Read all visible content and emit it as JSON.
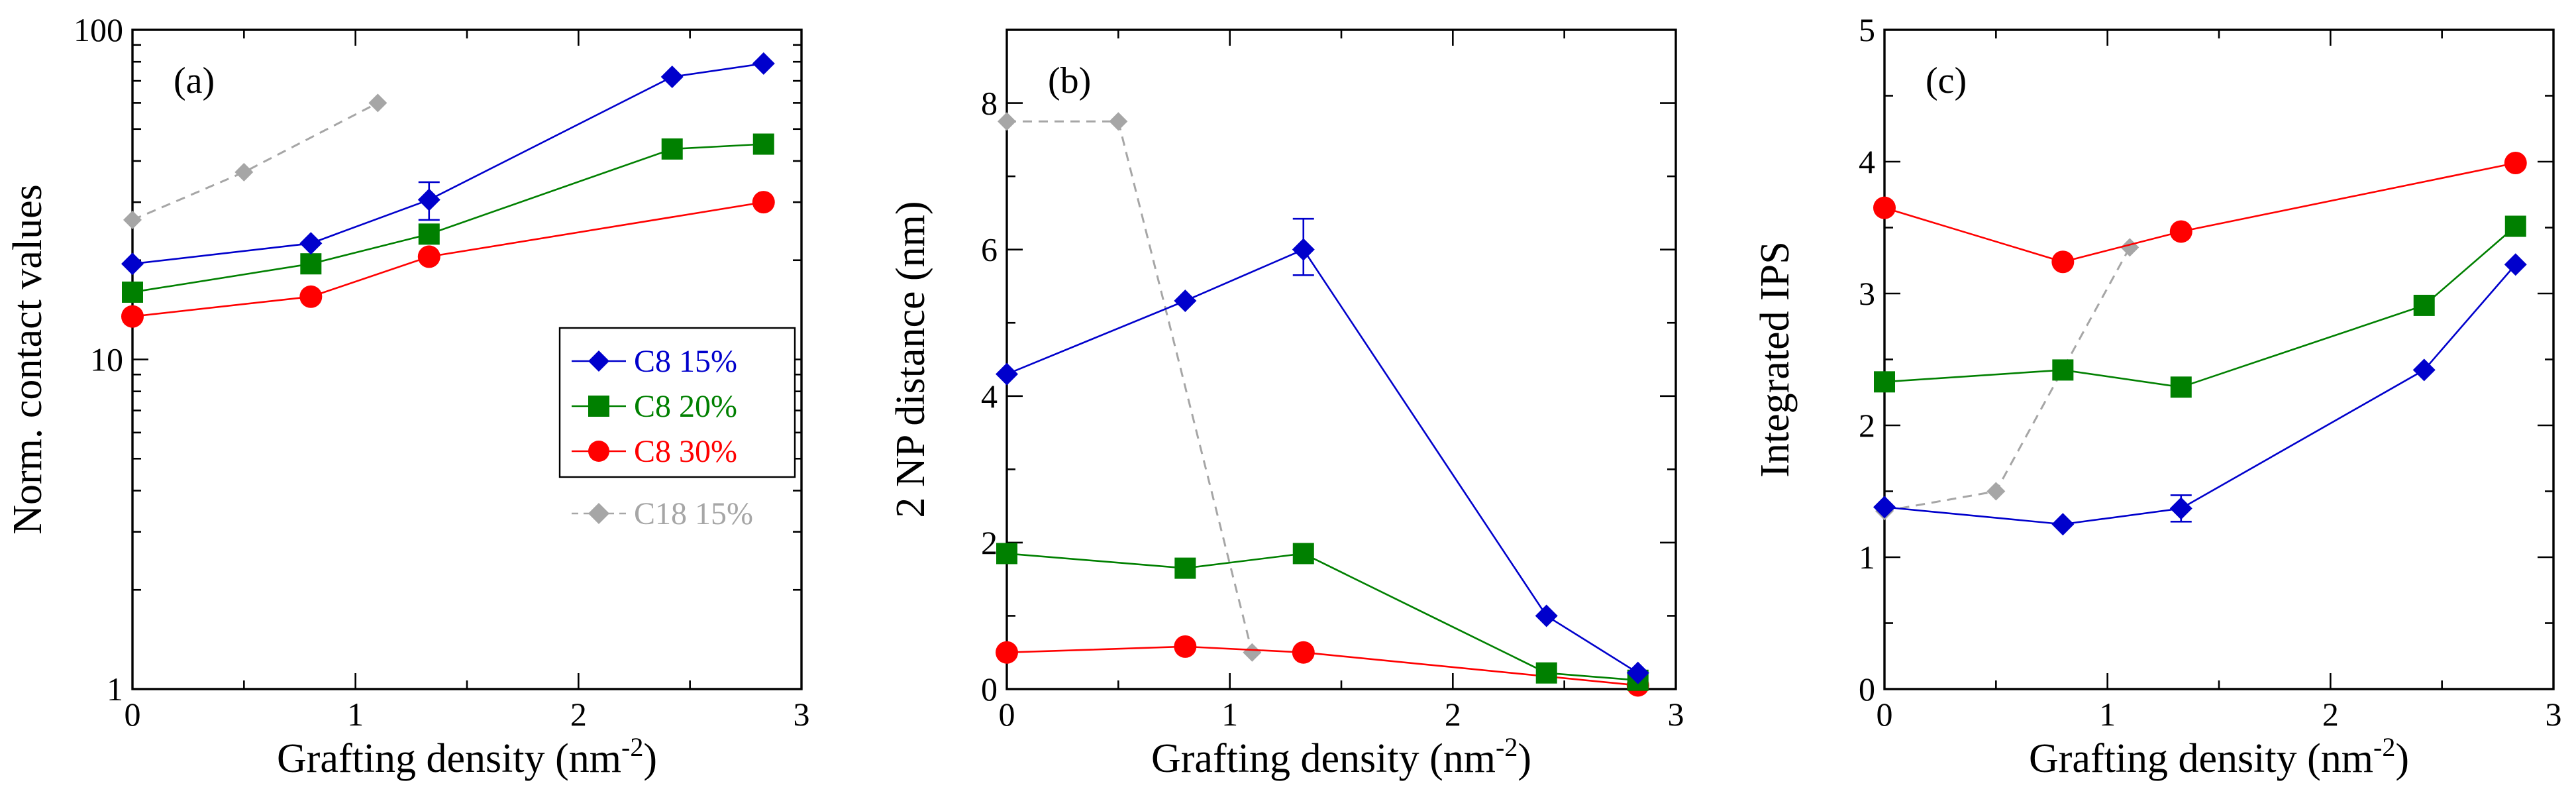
{
  "chart_data": [
    {
      "type": "line",
      "panel_label": "(a)",
      "xlabel": "Grafting density (nm",
      "xlabel_sup": "-2",
      "xlabel_tail": ")",
      "ylabel": "Norm. contact values",
      "xlim": [
        0,
        3
      ],
      "ylim": [
        1,
        100
      ],
      "yscale": "log",
      "xticks": [
        "0",
        "1",
        "2",
        "3"
      ],
      "yticks": [
        "1",
        "10",
        "100"
      ],
      "legend_position": "right-middle",
      "series": [
        {
          "name": "C8 15%",
          "color": "#0000cc",
          "marker": "diamond",
          "dashed": false,
          "x": [
            0,
            0.8,
            1.33,
            2.42,
            2.83
          ],
          "y": [
            19.5,
            22.5,
            30.5,
            72,
            79
          ],
          "errors": [
            {
              "index": 2,
              "low": 26.5,
              "high": 34.5
            }
          ]
        },
        {
          "name": "C8 20%",
          "color": "#008000",
          "marker": "square",
          "dashed": false,
          "x": [
            0,
            0.8,
            1.33,
            2.42,
            2.83
          ],
          "y": [
            16.0,
            19.5,
            24.0,
            43.5,
            45.0
          ],
          "errors": []
        },
        {
          "name": "C8 30%",
          "color": "#ff0000",
          "marker": "circle",
          "dashed": false,
          "x": [
            0,
            0.8,
            1.33,
            2.83
          ],
          "y": [
            13.5,
            15.5,
            20.5,
            30.0
          ],
          "errors": []
        },
        {
          "name": "C18 15%",
          "color": "#a6a6a6",
          "marker": "diamond",
          "dashed": true,
          "x": [
            0,
            0.5,
            1.1
          ],
          "y": [
            26.5,
            37.0,
            60.0
          ],
          "errors": []
        }
      ]
    },
    {
      "type": "line",
      "panel_label": "(b)",
      "xlabel": "Grafting density (nm",
      "xlabel_sup": "-2",
      "xlabel_tail": ")",
      "ylabel": "2 NP distance (nm)",
      "xlim": [
        0,
        3
      ],
      "ylim": [
        0,
        9
      ],
      "yscale": "linear",
      "xticks": [
        "0",
        "1",
        "2",
        "3"
      ],
      "yticks": [
        "0",
        "2",
        "4",
        "6",
        "8"
      ],
      "series": [
        {
          "name": "C8 15%",
          "color": "#0000cc",
          "marker": "diamond",
          "dashed": false,
          "x": [
            0,
            0.8,
            1.33,
            2.42,
            2.83
          ],
          "y": [
            4.3,
            5.3,
            6.0,
            1.0,
            0.22
          ],
          "errors": [
            {
              "index": 2,
              "low": 5.65,
              "high": 6.42
            }
          ]
        },
        {
          "name": "C8 20%",
          "color": "#008000",
          "marker": "square",
          "dashed": false,
          "x": [
            0,
            0.8,
            1.33,
            2.42,
            2.83
          ],
          "y": [
            1.85,
            1.65,
            1.85,
            0.22,
            0.12
          ],
          "errors": []
        },
        {
          "name": "C8 30%",
          "color": "#ff0000",
          "marker": "circle",
          "dashed": false,
          "x": [
            0,
            0.8,
            1.33,
            2.83
          ],
          "y": [
            0.5,
            0.58,
            0.5,
            0.05
          ],
          "errors": []
        },
        {
          "name": "C18 15%",
          "color": "#a6a6a6",
          "marker": "diamond",
          "dashed": true,
          "x": [
            0,
            0.5,
            1.1
          ],
          "y": [
            7.75,
            7.75,
            0.5
          ],
          "errors": []
        }
      ]
    },
    {
      "type": "line",
      "panel_label": "(c)",
      "xlabel": "Grafting density (nm",
      "xlabel_sup": "-2",
      "xlabel_tail": ")",
      "ylabel": "Integrated IPS",
      "xlim": [
        0,
        3
      ],
      "ylim": [
        0,
        5
      ],
      "yscale": "linear",
      "xticks": [
        "0",
        "1",
        "2",
        "3"
      ],
      "yticks": [
        "0",
        "1",
        "2",
        "3",
        "4",
        "5"
      ],
      "series": [
        {
          "name": "C8 15%",
          "color": "#0000cc",
          "marker": "diamond",
          "dashed": false,
          "x": [
            0,
            0.8,
            1.33,
            2.42,
            2.83
          ],
          "y": [
            1.38,
            1.25,
            1.37,
            2.42,
            3.22
          ],
          "errors": [
            {
              "index": 2,
              "low": 1.27,
              "high": 1.47
            }
          ]
        },
        {
          "name": "C8 20%",
          "color": "#008000",
          "marker": "square",
          "dashed": false,
          "x": [
            0,
            0.8,
            1.33,
            2.42,
            2.83
          ],
          "y": [
            2.33,
            2.42,
            2.29,
            2.91,
            3.51
          ],
          "errors": []
        },
        {
          "name": "C8 30%",
          "color": "#ff0000",
          "marker": "circle",
          "dashed": false,
          "x": [
            0,
            0.8,
            1.33,
            2.83
          ],
          "y": [
            3.65,
            3.24,
            3.47,
            3.99
          ],
          "errors": []
        },
        {
          "name": "C18 15%",
          "color": "#a6a6a6",
          "marker": "diamond",
          "dashed": true,
          "x": [
            0,
            0.5,
            1.1
          ],
          "y": [
            1.35,
            1.5,
            3.35
          ],
          "errors": []
        }
      ]
    }
  ]
}
